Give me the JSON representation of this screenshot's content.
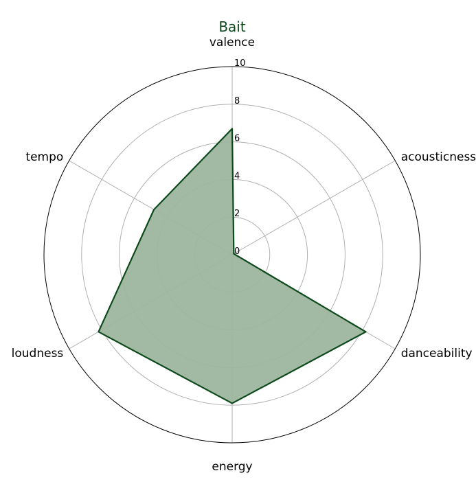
{
  "chart_data": {
    "type": "radar",
    "title": "Bait",
    "axes": [
      "valence",
      "acousticness",
      "danceability",
      "energy",
      "loudness",
      "tempo"
    ],
    "series": [
      {
        "values": [
          6.7,
          0.1,
          8.2,
          7.9,
          8.2,
          4.8
        ]
      }
    ],
    "rlim": [
      0,
      10
    ],
    "rticks": [
      "0",
      "2",
      "4",
      "6",
      "8",
      "10"
    ],
    "grid": true,
    "colors": {
      "line": "#0d4a1b",
      "fill": "#9db59f",
      "title": "#0d4a1b",
      "grid": "#b0b0b0",
      "frame": "#000000"
    }
  }
}
